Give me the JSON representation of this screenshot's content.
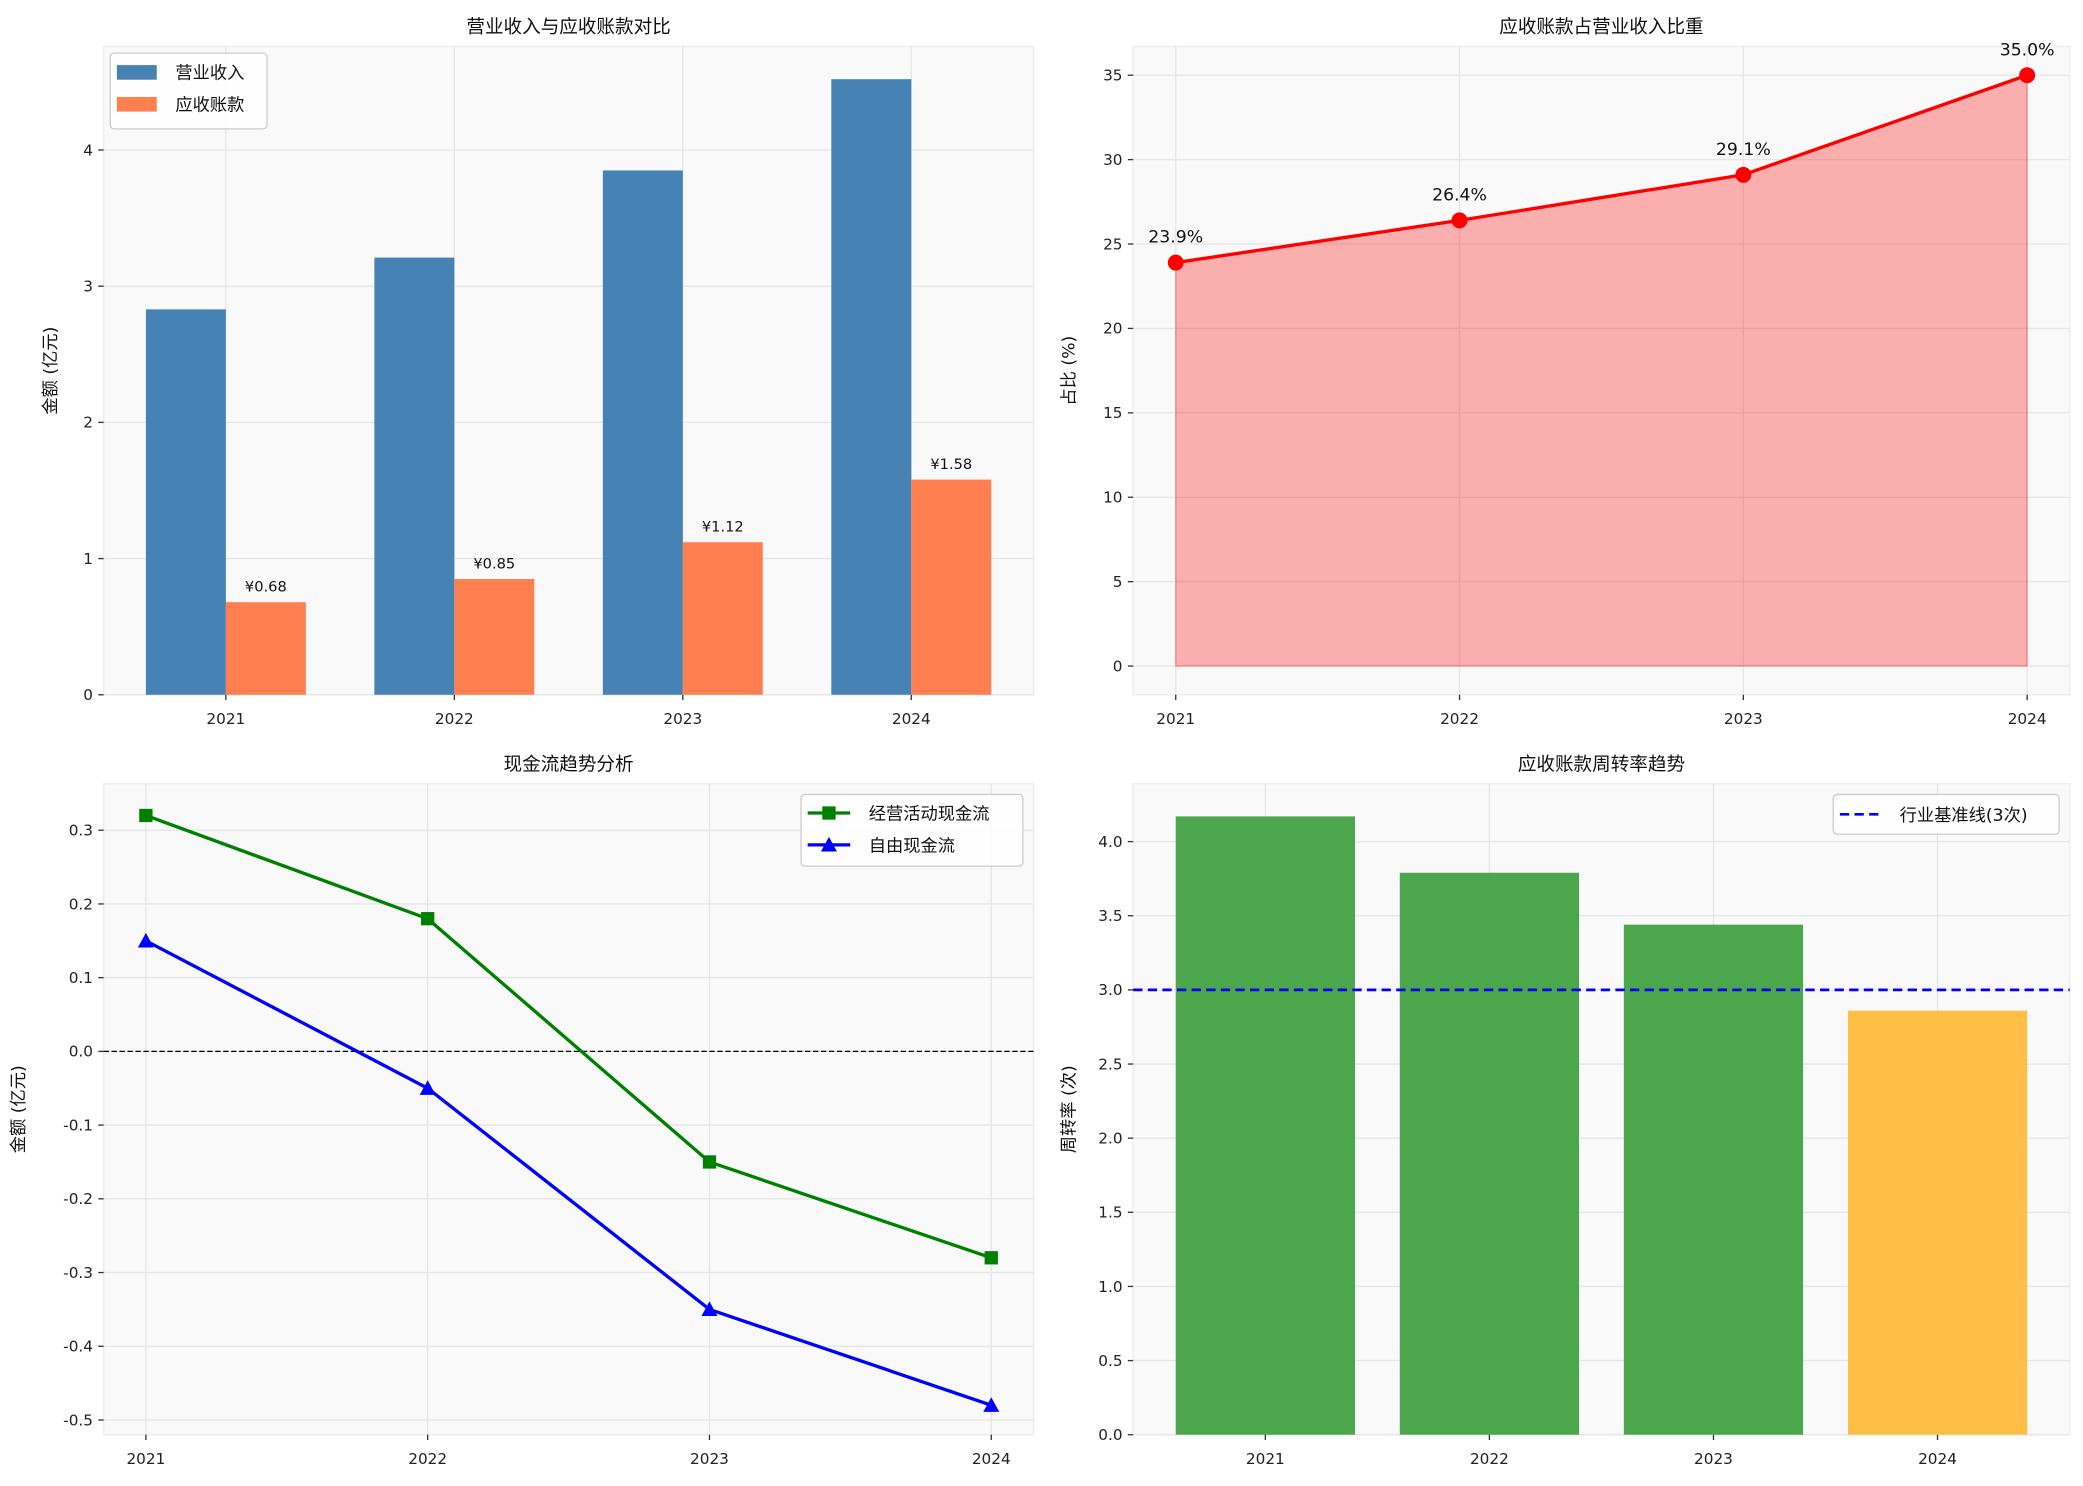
{
  "chart_data": [
    {
      "type": "bar",
      "title": "营业收入与应收账款对比",
      "ylabel": "金额 (亿元)",
      "categories": [
        "2021",
        "2022",
        "2023",
        "2024"
      ],
      "series": [
        {
          "name": "营业收入",
          "values": [
            2.83,
            3.21,
            3.85,
            4.52
          ],
          "color": "#4682b4"
        },
        {
          "name": "应收账款",
          "values": [
            0.68,
            0.85,
            1.12,
            1.58
          ],
          "color": "#ff7f50",
          "labels": [
            "¥0.68",
            "¥0.85",
            "¥1.12",
            "¥1.58"
          ]
        }
      ],
      "yticks": [
        0,
        1,
        2,
        3,
        4
      ],
      "ylim": [
        0,
        4.76
      ],
      "grid": true,
      "legend": "upper-left"
    },
    {
      "type": "area",
      "title": "应收账款占营业收入比重",
      "ylabel": "占比 (%)",
      "categories": [
        "2021",
        "2022",
        "2023",
        "2024"
      ],
      "values": [
        23.9,
        26.4,
        29.1,
        35.0
      ],
      "labels": [
        "23.9%",
        "26.4%",
        "29.1%",
        "35.0%"
      ],
      "color": "#ff0000",
      "yticks": [
        0,
        5,
        10,
        15,
        20,
        25,
        30,
        35
      ],
      "ylim": [
        -1.7,
        36.7
      ],
      "grid": true
    },
    {
      "type": "line",
      "title": "现金流趋势分析",
      "ylabel": "金额 (亿元)",
      "categories": [
        "2021",
        "2022",
        "2023",
        "2024"
      ],
      "series": [
        {
          "name": "经营活动现金流",
          "values": [
            0.32,
            0.18,
            -0.15,
            -0.28
          ],
          "color": "#008000",
          "marker": "square"
        },
        {
          "name": "自由现金流",
          "values": [
            0.15,
            -0.05,
            -0.35,
            -0.48
          ],
          "color": "#0000ff",
          "marker": "triangle"
        }
      ],
      "reference_line": 0,
      "yticks": [
        0.3,
        0.2,
        0.1,
        0.0,
        -0.1,
        -0.2,
        -0.3,
        -0.4,
        -0.5
      ],
      "ytick_labels": [
        "0.3",
        "0.2",
        "0.1",
        "0.0",
        "-0.1",
        "-0.2",
        "-0.3",
        "-0.4",
        "-0.5"
      ],
      "ylim": [
        -0.52,
        0.363
      ],
      "grid": true,
      "legend": "upper-right"
    },
    {
      "type": "bar",
      "title": "应收账款周转率趋势",
      "ylabel": "周转率 (次)",
      "categories": [
        "2021",
        "2022",
        "2023",
        "2024"
      ],
      "values": [
        4.17,
        3.79,
        3.44,
        2.86
      ],
      "colors": [
        "#4ca64c",
        "#4ca64c",
        "#4ca64c",
        "#ffbf47"
      ],
      "benchmark": {
        "name": "行业基准线(3次)",
        "value": 3,
        "color": "#0000ff",
        "style": "dashed"
      },
      "yticks": [
        0,
        0.5,
        1,
        1.5,
        2,
        2.5,
        3,
        3.5,
        4
      ],
      "ytick_labels": [
        "0.0",
        "0.5",
        "1.0",
        "1.5",
        "2.0",
        "2.5",
        "3.0",
        "3.5",
        "4.0"
      ],
      "ylim": [
        0,
        4.39
      ],
      "grid": true,
      "legend": "upper-right"
    }
  ]
}
